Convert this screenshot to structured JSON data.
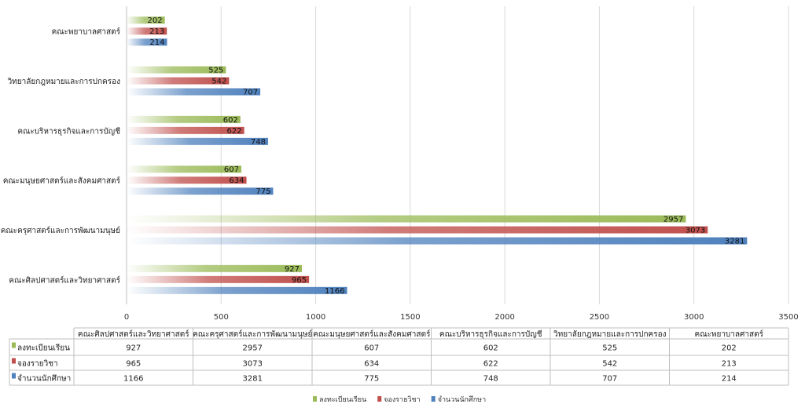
{
  "chart_data": {
    "type": "bar",
    "orientation": "horizontal",
    "categories": [
      "คณะศิลปศาสตร์และวิทยาศาสตร์",
      "คณะครุศาสตร์และการพัฒนามนุษย์",
      "คณะมนุษยศาสตร์และสังคมศาสตร์",
      "คณะบริหารธุรกิจและการบัญชี",
      "วิทยาลัยกฎหมายและการปกครอง",
      "คณะพยาบาลศาสตร์"
    ],
    "series": [
      {
        "name": "ลงทะเบียนเรียน",
        "color": "#9BBB59",
        "values": [
          927,
          2957,
          607,
          602,
          525,
          202
        ]
      },
      {
        "name": "จองรายวิชา",
        "color": "#C0504D",
        "values": [
          965,
          3073,
          634,
          622,
          542,
          213
        ]
      },
      {
        "name": "จำนวนนักศึกษา",
        "color": "#4F81BD",
        "values": [
          1166,
          3281,
          775,
          748,
          707,
          214
        ]
      }
    ],
    "xlim": [
      0,
      3500
    ],
    "xticks": [
      0,
      500,
      1000,
      1500,
      2000,
      2500,
      3000,
      3500
    ],
    "grid": true,
    "legend_position": "bottom",
    "data_table": true
  }
}
